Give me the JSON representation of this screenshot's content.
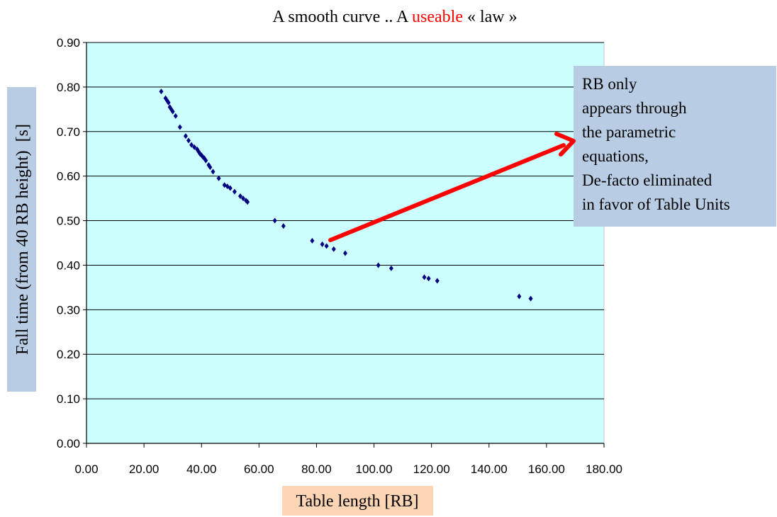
{
  "title": {
    "part1": "A smooth curve .. A ",
    "highlight": "useable",
    "part2": " « law »",
    "highlight_color": "#ff0000"
  },
  "annotation": {
    "lines": [
      "RB only",
      "appears through",
      "the parametric",
      "equations,",
      "De-facto eliminated",
      "in favor of Table Units"
    ],
    "box_color": "#b8cce4",
    "arrow_color": "#ff0000"
  },
  "colors": {
    "plot_background": "#ccffff",
    "marker": "#000080",
    "ylabel_box": "#b8cce4",
    "xlabel_box": "#fcd5b4",
    "gridline": "#000000"
  },
  "chart_data": {
    "type": "scatter",
    "xlabel": "Table length [RB]",
    "ylabel": "Fall time (from 40 RB height)  [s]",
    "xlim": [
      0,
      180
    ],
    "ylim": [
      0,
      0.9
    ],
    "x_ticks": [
      "0.00",
      "20.00",
      "40.00",
      "60.00",
      "80.00",
      "100.00",
      "120.00",
      "140.00",
      "160.00",
      "180.00"
    ],
    "y_ticks": [
      "0.00",
      "0.10",
      "0.20",
      "0.30",
      "0.40",
      "0.50",
      "0.60",
      "0.70",
      "0.80",
      "0.90"
    ],
    "grid": "horizontal",
    "legend": "none",
    "marker": "diamond",
    "x": [
      26.0,
      27.5,
      28.0,
      28.5,
      29.0,
      29.5,
      30.0,
      31.0,
      32.5,
      34.5,
      35.5,
      36.5,
      37.5,
      38.5,
      39.0,
      39.5,
      40.0,
      40.5,
      41.0,
      41.5,
      42.5,
      43.0,
      44.0,
      46.0,
      48.0,
      49.0,
      50.0,
      51.5,
      53.5,
      54.5,
      55.5,
      56.0,
      65.5,
      68.5,
      78.5,
      82.0,
      83.5,
      86.0,
      90.0,
      101.5,
      106.0,
      117.5,
      119.0,
      122.0,
      150.5,
      154.5
    ],
    "y": [
      0.79,
      0.775,
      0.77,
      0.765,
      0.755,
      0.75,
      0.745,
      0.735,
      0.71,
      0.69,
      0.68,
      0.67,
      0.665,
      0.66,
      0.655,
      0.65,
      0.647,
      0.643,
      0.64,
      0.635,
      0.625,
      0.62,
      0.61,
      0.595,
      0.58,
      0.577,
      0.573,
      0.565,
      0.555,
      0.55,
      0.545,
      0.542,
      0.5,
      0.488,
      0.455,
      0.447,
      0.443,
      0.436,
      0.427,
      0.4,
      0.393,
      0.373,
      0.37,
      0.365,
      0.33,
      0.325
    ]
  }
}
